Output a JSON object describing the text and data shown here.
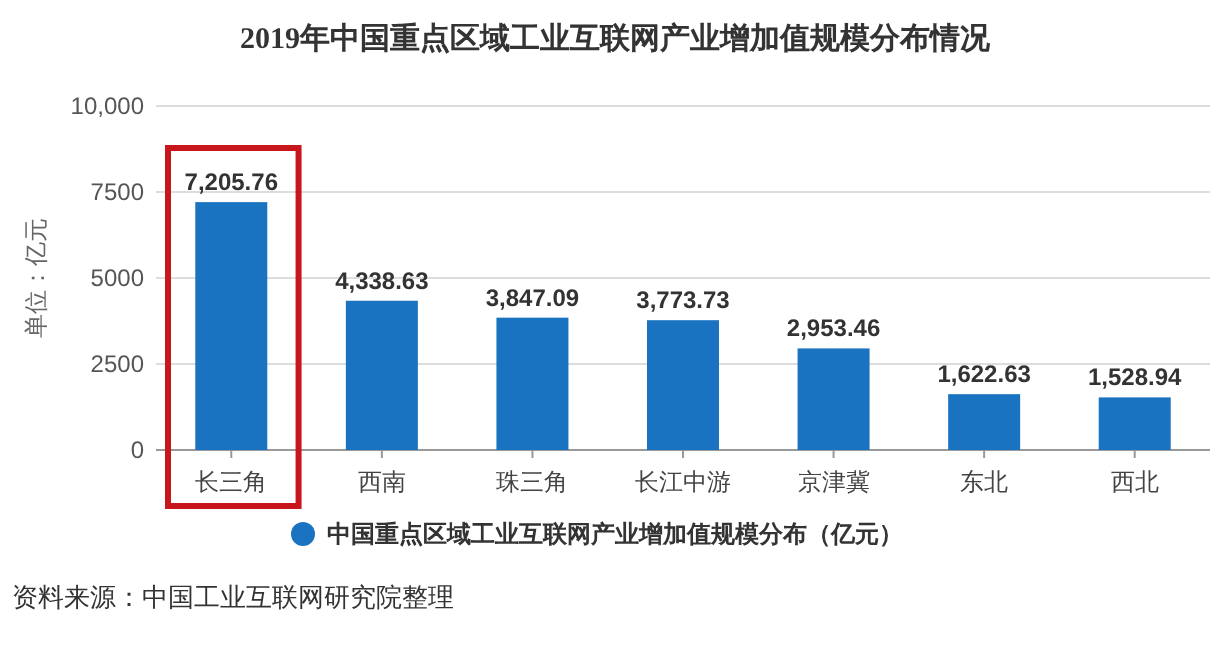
{
  "chart_data": {
    "type": "bar",
    "title": "2019年中国重点区域工业互联网产业增加值规模分布情况",
    "ylabel": "单位：亿元",
    "categories": [
      "长三角",
      "西南",
      "珠三角",
      "长江中游",
      "京津冀",
      "东北",
      "西北"
    ],
    "series": [
      {
        "name": "中国重点区域工业互联网产业增加值规模分布（亿元）",
        "color": "#1a73c0",
        "values": [
          7205.76,
          4338.63,
          3847.09,
          3773.73,
          2953.46,
          1622.63,
          1528.94
        ],
        "value_labels": [
          "7,205.76",
          "4,338.63",
          "3,847.09",
          "3,773.73",
          "2,953.46",
          "1,622.63",
          "1,528.94"
        ]
      }
    ],
    "ylim": [
      0,
      10000
    ],
    "yticks": [
      0,
      2500,
      5000,
      7500,
      {
        "value": 10000,
        "label": "10,000"
      }
    ],
    "grid": "y",
    "legend": "bottom",
    "annotations": [
      "资料来源：中国工业互联网研究院整理"
    ]
  }
}
